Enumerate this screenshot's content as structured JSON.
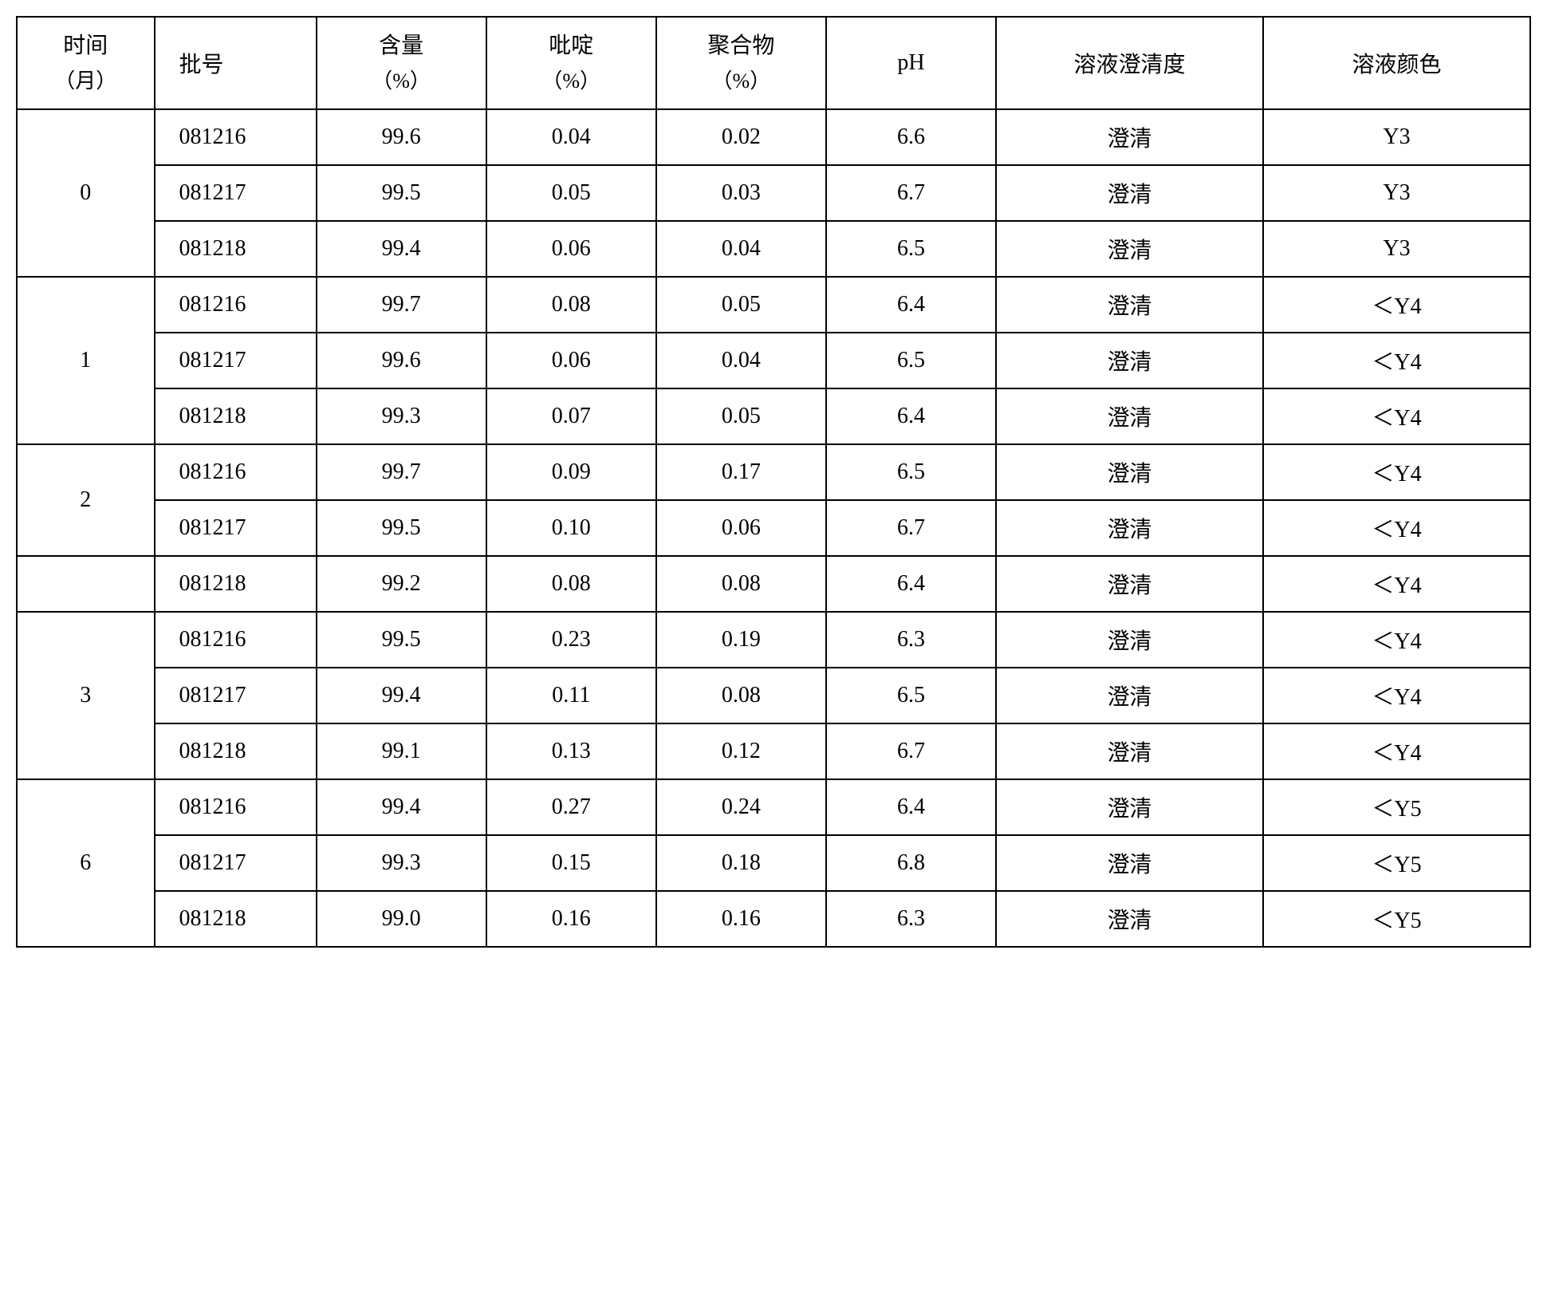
{
  "table": {
    "headers": {
      "time": "时间",
      "time_unit": "（月）",
      "batch": "批号",
      "content": "含量",
      "content_unit": "（%）",
      "pyridine": "吡啶",
      "pyridine_unit": "（%）",
      "polymer": "聚合物",
      "polymer_unit": "（%）",
      "ph": "pH",
      "clarity": "溶液澄清度",
      "color": "溶液颜色"
    },
    "groups": [
      {
        "time": "0",
        "rows": [
          {
            "batch": "081216",
            "content": "99.6",
            "pyridine": "0.04",
            "polymer": "0.02",
            "ph": "6.6",
            "clarity": "澄清",
            "color": "Y3"
          },
          {
            "batch": "081217",
            "content": "99.5",
            "pyridine": "0.05",
            "polymer": "0.03",
            "ph": "6.7",
            "clarity": "澄清",
            "color": "Y3"
          },
          {
            "batch": "081218",
            "content": "99.4",
            "pyridine": "0.06",
            "polymer": "0.04",
            "ph": "6.5",
            "clarity": "澄清",
            "color": "Y3"
          }
        ]
      },
      {
        "time": "1",
        "rows": [
          {
            "batch": "081216",
            "content": "99.7",
            "pyridine": "0.08",
            "polymer": "0.05",
            "ph": "6.4",
            "clarity": "澄清",
            "color": "＜Y4"
          },
          {
            "batch": "081217",
            "content": "99.6",
            "pyridine": "0.06",
            "polymer": "0.04",
            "ph": "6.5",
            "clarity": "澄清",
            "color": "＜Y4"
          },
          {
            "batch": "081218",
            "content": "99.3",
            "pyridine": "0.07",
            "polymer": "0.05",
            "ph": "6.4",
            "clarity": "澄清",
            "color": "＜Y4"
          }
        ]
      },
      {
        "time": "2",
        "rows": [
          {
            "batch": "081216",
            "content": "99.7",
            "pyridine": "0.09",
            "polymer": "0.17",
            "ph": "6.5",
            "clarity": "澄清",
            "color": "＜Y4"
          },
          {
            "batch": "081217",
            "content": "99.5",
            "pyridine": "0.10",
            "polymer": "0.06",
            "ph": "6.7",
            "clarity": "澄清",
            "color": "＜Y4"
          }
        ]
      },
      {
        "time": "",
        "rows": [
          {
            "batch": "081218",
            "content": "99.2",
            "pyridine": "0.08",
            "polymer": "0.08",
            "ph": "6.4",
            "clarity": "澄清",
            "color": "＜Y4"
          }
        ]
      },
      {
        "time": "3",
        "rows": [
          {
            "batch": "081216",
            "content": "99.5",
            "pyridine": "0.23",
            "polymer": "0.19",
            "ph": "6.3",
            "clarity": "澄清",
            "color": "＜Y4"
          },
          {
            "batch": "081217",
            "content": "99.4",
            "pyridine": "0.11",
            "polymer": "0.08",
            "ph": "6.5",
            "clarity": "澄清",
            "color": "＜Y4"
          },
          {
            "batch": "081218",
            "content": "99.1",
            "pyridine": "0.13",
            "polymer": "0.12",
            "ph": "6.7",
            "clarity": "澄清",
            "color": "＜Y4"
          }
        ]
      },
      {
        "time": "6",
        "rows": [
          {
            "batch": "081216",
            "content": "99.4",
            "pyridine": "0.27",
            "polymer": "0.24",
            "ph": "6.4",
            "clarity": "澄清",
            "color": "＜Y5"
          },
          {
            "batch": "081217",
            "content": "99.3",
            "pyridine": "0.15",
            "polymer": "0.18",
            "ph": "6.8",
            "clarity": "澄清",
            "color": "＜Y5"
          },
          {
            "batch": "081218",
            "content": "99.0",
            "pyridine": "0.16",
            "polymer": "0.16",
            "ph": "6.3",
            "clarity": "澄清",
            "color": "＜Y5"
          }
        ]
      }
    ]
  }
}
